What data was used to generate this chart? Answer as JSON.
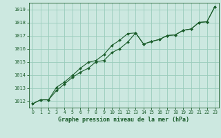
{
  "title": "Graphe pression niveau de la mer (hPa)",
  "background_color": "#cce8e0",
  "grid_color": "#99ccbb",
  "line_color": "#1a5c2a",
  "xlim": [
    -0.5,
    23.5
  ],
  "ylim": [
    1011.5,
    1019.5
  ],
  "yticks": [
    1012,
    1013,
    1014,
    1015,
    1016,
    1017,
    1018,
    1019
  ],
  "xticks": [
    0,
    1,
    2,
    3,
    4,
    5,
    6,
    7,
    8,
    9,
    10,
    11,
    12,
    13,
    14,
    15,
    16,
    17,
    18,
    19,
    20,
    21,
    22,
    23
  ],
  "series1_x": [
    0,
    1,
    2,
    3,
    4,
    5,
    6,
    7,
    8,
    9,
    10,
    11,
    12,
    13,
    14,
    15,
    16,
    17,
    18,
    19,
    20,
    21,
    22,
    23
  ],
  "series1_y": [
    1011.8,
    1012.1,
    1012.1,
    1012.8,
    1013.3,
    1013.8,
    1014.2,
    1014.5,
    1015.0,
    1015.1,
    1015.7,
    1016.0,
    1016.5,
    1017.2,
    1016.35,
    1016.55,
    1016.7,
    1017.0,
    1017.05,
    1017.4,
    1017.5,
    1018.0,
    1018.05,
    1019.2
  ],
  "series2_x": [
    0,
    1,
    2,
    3,
    4,
    5,
    6,
    7,
    8,
    9,
    10,
    11,
    12,
    13,
    14,
    15,
    16,
    17,
    18,
    19,
    20,
    21,
    22,
    23
  ],
  "series2_y": [
    1011.8,
    1012.1,
    1012.1,
    1013.05,
    1013.45,
    1013.95,
    1014.5,
    1014.95,
    1015.1,
    1015.55,
    1016.25,
    1016.65,
    1017.15,
    1017.2,
    1016.35,
    1016.55,
    1016.7,
    1017.0,
    1017.05,
    1017.4,
    1017.5,
    1018.0,
    1018.05,
    1019.2
  ]
}
